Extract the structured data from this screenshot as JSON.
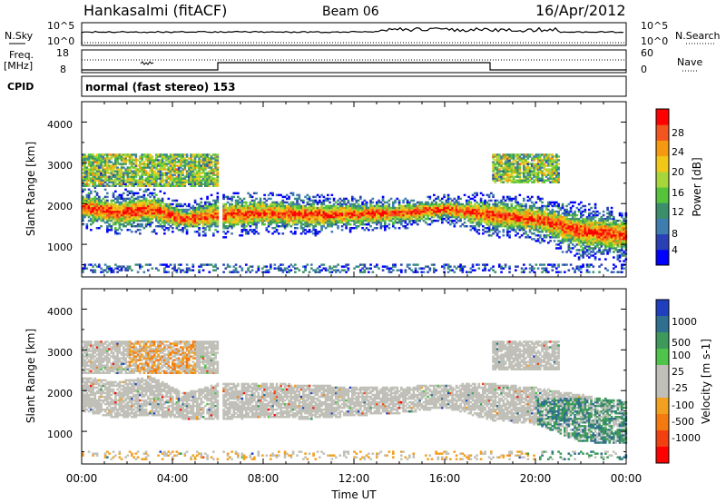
{
  "header": {
    "station": "Hankasalmi (fitACF)",
    "beam": "Beam 06",
    "date": "16/Apr/2012"
  },
  "top_panels": {
    "nsky_label": "N.Sky",
    "nsky_scale_top": "10^5",
    "nsky_scale_bottom": "10^0",
    "nsearch_label": "N.Search",
    "nsearch_scale_top": "10^5",
    "nsearch_scale_bottom": "10^0",
    "freq_label_1": "Freq.",
    "freq_label_2": "[MHz]",
    "freq_tick_top": "18",
    "freq_tick_bottom": "8",
    "nave_label": "Nave",
    "nave_tick_top": "60",
    "nave_tick_bottom": "0",
    "cpid_label": "CPID",
    "cpid_text": "normal (fast stereo) 153"
  },
  "chart_data": [
    {
      "type": "heatmap",
      "panel": "power",
      "ylabel": "Slant Range [km]",
      "ylim": [
        200,
        4500
      ],
      "yticks": [
        "1000",
        "2000",
        "3000",
        "4000"
      ],
      "xlabel": "Time UT",
      "xlim": [
        0,
        24
      ],
      "xticks": [
        "00:00",
        "04:00",
        "08:00",
        "12:00",
        "16:00",
        "20:00",
        "00:00"
      ],
      "colorbar": {
        "label": "Power [dB]",
        "ticks": [
          "4",
          "8",
          "12",
          "16",
          "20",
          "24",
          "28"
        ],
        "colors": [
          "#0000ff",
          "#2a40b4",
          "#3d7db0",
          "#3a8f6a",
          "#55c43a",
          "#a7d63b",
          "#f2c818",
          "#f59a10",
          "#f2551e",
          "#ff0000"
        ]
      },
      "bands": [
        {
          "t": 0,
          "c": 1900,
          "w": 650
        },
        {
          "t": 1.5,
          "c": 1750,
          "w": 700
        },
        {
          "t": 3,
          "c": 1850,
          "w": 750
        },
        {
          "t": 4.5,
          "c": 1600,
          "w": 500
        },
        {
          "t": 6,
          "c": 1700,
          "w": 700
        },
        {
          "t": 8,
          "c": 1750,
          "w": 650
        },
        {
          "t": 10,
          "c": 1700,
          "w": 650
        },
        {
          "t": 12,
          "c": 1720,
          "w": 550
        },
        {
          "t": 14,
          "c": 1750,
          "w": 500
        },
        {
          "t": 16,
          "c": 1850,
          "w": 450
        },
        {
          "t": 18,
          "c": 1700,
          "w": 700
        },
        {
          "t": 20,
          "c": 1600,
          "w": 700
        },
        {
          "t": 22,
          "c": 1300,
          "w": 900
        },
        {
          "t": 24,
          "c": 1200,
          "w": 800
        }
      ]
    },
    {
      "type": "heatmap",
      "panel": "velocity",
      "ylabel": "Slant Range [km]",
      "ylim": [
        200,
        4500
      ],
      "yticks": [
        "1000",
        "2000",
        "3000",
        "4000"
      ],
      "xlabel": "Time UT",
      "xlim": [
        0,
        24
      ],
      "xticks": [
        "00:00",
        "04:00",
        "08:00",
        "12:00",
        "16:00",
        "20:00",
        "00:00"
      ],
      "colorbar": {
        "label": "Velocity [m s-1]",
        "ticks": [
          "1000",
          "500",
          "100",
          "25",
          "-25",
          "-100",
          "-500",
          "-1000"
        ],
        "colors": [
          "#1f3fbf",
          "#2f6f8f",
          "#3d9a5a",
          "#4fc44a",
          "#c0c0b8",
          "#c0c0b8",
          "#f2a020",
          "#f47a10",
          "#f24010",
          "#ff0000"
        ]
      }
    }
  ]
}
